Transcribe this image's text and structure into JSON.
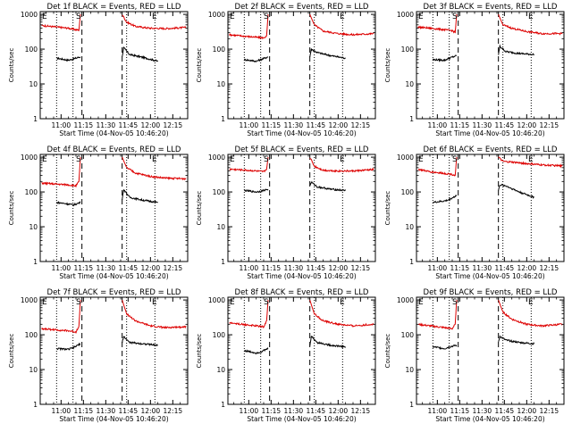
{
  "x_ticks": [
    "11:00",
    "11:15",
    "11:30",
    "11:45",
    "12:00",
    "12:15"
  ],
  "y_ticks": [
    "1",
    "10",
    "100",
    "1000"
  ],
  "ylabel": "Counts/sec",
  "xlabel": "Start Time (04-Nov-05 10:46:20)",
  "flag_labels": {
    "e_left": "E",
    "s": "S",
    "e_right": "E"
  },
  "colors": {
    "events": "#000000",
    "lld": "#dd0000",
    "axes": "#000000"
  },
  "chart_data": [
    {
      "type": "line",
      "title": "Det 1f BLACK = Events, RED = LLD",
      "xlabel": "Start Time (04-Nov-05 10:46:20)",
      "ylabel": "Counts/sec",
      "ylog": true,
      "ylim": [
        1,
        1200
      ],
      "xlim": [
        "10:46",
        "12:25"
      ],
      "vertical_lines": {
        "dotted": [
          "10:57",
          "11:08",
          "11:44",
          "12:03"
        ],
        "dashed": [
          "11:14",
          "11:41"
        ]
      },
      "series": [
        {
          "name": "Events",
          "segments": [
            {
              "x": [
                "10:57",
                "11:05",
                "11:08",
                "11:13"
              ],
              "y": [
                55,
                48,
                52,
                60
              ]
            },
            {
              "x": [
                "11:41",
                "11:42",
                "11:46",
                "11:55",
                "12:05"
              ],
              "y": [
                60,
                110,
                70,
                58,
                45
              ]
            }
          ]
        },
        {
          "name": "LLD",
          "segments": [
            {
              "x": [
                "10:47",
                "10:55",
                "11:05",
                "11:10",
                "11:12",
                "11:13"
              ],
              "y": [
                480,
                440,
                400,
                360,
                350,
                1000
              ]
            },
            {
              "x": [
                "11:41",
                "11:44",
                "11:50",
                "12:00",
                "12:10",
                "12:24"
              ],
              "y": [
                1000,
                600,
                450,
                400,
                390,
                420
              ]
            }
          ]
        }
      ]
    },
    {
      "type": "line",
      "title": "Det 2f BLACK = Events, RED = LLD",
      "xlabel": "Start Time (04-Nov-05 10:46:20)",
      "ylabel": "Counts/sec",
      "ylog": true,
      "ylim": [
        1,
        1200
      ],
      "xlim": [
        "10:46",
        "12:25"
      ],
      "vertical_lines": {
        "dotted": [
          "10:57",
          "11:08",
          "11:44",
          "12:03"
        ],
        "dashed": [
          "11:14",
          "11:41"
        ]
      },
      "series": [
        {
          "name": "Events",
          "segments": [
            {
              "x": [
                "10:57",
                "11:05",
                "11:08",
                "11:13"
              ],
              "y": [
                50,
                45,
                50,
                60
              ]
            },
            {
              "x": [
                "11:41",
                "11:42",
                "11:46",
                "11:55",
                "12:05"
              ],
              "y": [
                60,
                100,
                80,
                65,
                55
              ]
            }
          ]
        },
        {
          "name": "LLD",
          "segments": [
            {
              "x": [
                "10:47",
                "10:55",
                "11:05",
                "11:10",
                "11:12",
                "11:13"
              ],
              "y": [
                260,
                240,
                220,
                210,
                240,
                1000
              ]
            },
            {
              "x": [
                "11:41",
                "11:44",
                "11:50",
                "12:00",
                "12:10",
                "12:24"
              ],
              "y": [
                1000,
                500,
                330,
                280,
                260,
                280
              ]
            }
          ]
        }
      ]
    },
    {
      "type": "line",
      "title": "Det 3f BLACK = Events, RED = LLD",
      "xlabel": "Start Time (04-Nov-05 10:46:20)",
      "ylabel": "Counts/sec",
      "ylog": true,
      "ylim": [
        1,
        1200
      ],
      "xlim": [
        "10:46",
        "12:25"
      ],
      "vertical_lines": {
        "dotted": [
          "10:57",
          "11:08",
          "11:44",
          "12:03"
        ],
        "dashed": [
          "11:14",
          "11:41"
        ]
      },
      "series": [
        {
          "name": "Events",
          "segments": [
            {
              "x": [
                "10:57",
                "11:05",
                "11:08",
                "11:13"
              ],
              "y": [
                50,
                48,
                55,
                65
              ]
            },
            {
              "x": [
                "11:41",
                "11:42",
                "11:46",
                "11:55",
                "12:05"
              ],
              "y": [
                70,
                120,
                85,
                75,
                70
              ]
            }
          ]
        },
        {
          "name": "LLD",
          "segments": [
            {
              "x": [
                "10:47",
                "10:55",
                "11:05",
                "11:10",
                "11:12",
                "11:13"
              ],
              "y": [
                430,
                400,
                360,
                340,
                300,
                1000
              ]
            },
            {
              "x": [
                "11:41",
                "11:44",
                "11:50",
                "12:00",
                "12:10",
                "12:24"
              ],
              "y": [
                1000,
                500,
                400,
                320,
                280,
                280
              ]
            }
          ]
        }
      ]
    },
    {
      "type": "line",
      "title": "Det 4f BLACK = Events, RED = LLD",
      "xlabel": "Start Time (04-Nov-05 10:46:20)",
      "ylabel": "Counts/sec",
      "ylog": true,
      "ylim": [
        1,
        1200
      ],
      "xlim": [
        "10:46",
        "12:25"
      ],
      "vertical_lines": {
        "dotted": [
          "10:57",
          "11:08",
          "11:44",
          "12:03"
        ],
        "dashed": [
          "11:14",
          "11:41"
        ]
      },
      "series": [
        {
          "name": "Events",
          "segments": [
            {
              "x": [
                "10:57",
                "11:05",
                "11:08",
                "11:13"
              ],
              "y": [
                50,
                45,
                42,
                50
              ]
            },
            {
              "x": [
                "11:41",
                "11:42",
                "11:46",
                "11:55",
                "12:05"
              ],
              "y": [
                60,
                120,
                70,
                58,
                50
              ]
            }
          ]
        },
        {
          "name": "LLD",
          "segments": [
            {
              "x": [
                "10:47",
                "10:55",
                "11:05",
                "11:10",
                "11:12",
                "11:13"
              ],
              "y": [
                180,
                170,
                160,
                150,
                200,
                1000
              ]
            },
            {
              "x": [
                "11:41",
                "11:44",
                "11:50",
                "12:00",
                "12:10",
                "12:24"
              ],
              "y": [
                1000,
                500,
                350,
                280,
                250,
                240
              ]
            }
          ]
        }
      ]
    },
    {
      "type": "line",
      "title": "Det 5f BLACK = Events, RED = LLD",
      "xlabel": "Start Time (04-Nov-05 10:46:20)",
      "ylabel": "Counts/sec",
      "ylog": true,
      "ylim": [
        1,
        1200
      ],
      "xlim": [
        "10:46",
        "12:25"
      ],
      "vertical_lines": {
        "dotted": [
          "10:57",
          "11:08",
          "11:44",
          "12:03"
        ],
        "dashed": [
          "11:14",
          "11:41"
        ]
      },
      "series": [
        {
          "name": "Events",
          "segments": [
            {
              "x": [
                "10:57",
                "11:05",
                "11:08",
                "11:13"
              ],
              "y": [
                110,
                100,
                105,
                120
              ]
            },
            {
              "x": [
                "11:41",
                "11:42",
                "11:46",
                "11:55",
                "12:05"
              ],
              "y": [
                150,
                190,
                140,
                120,
                110
              ]
            }
          ]
        },
        {
          "name": "LLD",
          "segments": [
            {
              "x": [
                "10:47",
                "10:55",
                "11:05",
                "11:10",
                "11:12",
                "11:13"
              ],
              "y": [
                450,
                430,
                400,
                380,
                450,
                1000
              ]
            },
            {
              "x": [
                "11:41",
                "11:44",
                "11:50",
                "12:00",
                "12:10",
                "12:24"
              ],
              "y": [
                1000,
                550,
                420,
                400,
                400,
                440
              ]
            }
          ]
        }
      ]
    },
    {
      "type": "line",
      "title": "Det 6f BLACK = Events, RED = LLD",
      "xlabel": "Start Time (04-Nov-05 10:46:20)",
      "ylabel": "Counts/sec",
      "ylog": true,
      "ylim": [
        1,
        1200
      ],
      "xlim": [
        "10:46",
        "12:25"
      ],
      "vertical_lines": {
        "dotted": [
          "10:57",
          "11:08",
          "11:44",
          "12:03"
        ],
        "dashed": [
          "11:14",
          "11:41"
        ]
      },
      "series": [
        {
          "name": "Events",
          "segments": [
            {
              "x": [
                "10:57",
                "11:05",
                "11:08",
                "11:13"
              ],
              "y": [
                50,
                55,
                60,
                80
              ]
            },
            {
              "x": [
                "11:41",
                "11:42",
                "11:46",
                "11:55",
                "12:05"
              ],
              "y": [
                110,
                160,
                150,
                100,
                70
              ]
            }
          ]
        },
        {
          "name": "LLD",
          "segments": [
            {
              "x": [
                "10:47",
                "10:55",
                "11:05",
                "11:10",
                "11:12",
                "11:13"
              ],
              "y": [
                450,
                380,
                340,
                320,
                300,
                1000
              ]
            },
            {
              "x": [
                "11:41",
                "11:44",
                "11:50",
                "12:00",
                "12:10",
                "12:24"
              ],
              "y": [
                1000,
                750,
                720,
                650,
                600,
                560
              ]
            }
          ]
        }
      ]
    },
    {
      "type": "line",
      "title": "Det 7f BLACK = Events, RED = LLD",
      "xlabel": "Start Time (04-Nov-05 10:46:20)",
      "ylabel": "Counts/sec",
      "ylog": true,
      "ylim": [
        1,
        1200
      ],
      "xlim": [
        "10:46",
        "12:25"
      ],
      "vertical_lines": {
        "dotted": [
          "10:57",
          "11:08",
          "11:44",
          "12:03"
        ],
        "dashed": [
          "11:14",
          "11:41"
        ]
      },
      "series": [
        {
          "name": "Events",
          "segments": [
            {
              "x": [
                "10:57",
                "11:05",
                "11:08",
                "11:13"
              ],
              "y": [
                40,
                38,
                42,
                55
              ]
            },
            {
              "x": [
                "11:41",
                "11:42",
                "11:46",
                "11:55",
                "12:05"
              ],
              "y": [
                60,
                90,
                60,
                55,
                50
              ]
            }
          ]
        },
        {
          "name": "LLD",
          "segments": [
            {
              "x": [
                "10:47",
                "10:55",
                "11:05",
                "11:10",
                "11:12",
                "11:13"
              ],
              "y": [
                150,
                140,
                130,
                120,
                180,
                1000
              ]
            },
            {
              "x": [
                "11:41",
                "11:44",
                "11:50",
                "12:00",
                "12:10",
                "12:24"
              ],
              "y": [
                1000,
                400,
                250,
                180,
                160,
                170
              ]
            }
          ]
        }
      ]
    },
    {
      "type": "line",
      "title": "Det 8f BLACK = Events, RED = LLD",
      "xlabel": "Start Time (04-Nov-05 10:46:20)",
      "ylabel": "Counts/sec",
      "ylog": true,
      "ylim": [
        1,
        1200
      ],
      "xlim": [
        "10:46",
        "12:25"
      ],
      "vertical_lines": {
        "dotted": [
          "10:57",
          "11:08",
          "11:44",
          "12:03"
        ],
        "dashed": [
          "11:14",
          "11:41"
        ]
      },
      "series": [
        {
          "name": "Events",
          "segments": [
            {
              "x": [
                "10:57",
                "11:05",
                "11:08",
                "11:13"
              ],
              "y": [
                35,
                30,
                32,
                40
              ]
            },
            {
              "x": [
                "11:41",
                "11:42",
                "11:46",
                "11:55",
                "12:05"
              ],
              "y": [
                50,
                90,
                60,
                50,
                45
              ]
            }
          ]
        },
        {
          "name": "LLD",
          "segments": [
            {
              "x": [
                "10:47",
                "10:55",
                "11:05",
                "11:10",
                "11:12",
                "11:13"
              ],
              "y": [
                220,
                200,
                180,
                170,
                250,
                1000
              ]
            },
            {
              "x": [
                "11:41",
                "11:44",
                "11:50",
                "12:00",
                "12:10",
                "12:24"
              ],
              "y": [
                1000,
                400,
                250,
                200,
                180,
                200
              ]
            }
          ]
        }
      ]
    },
    {
      "type": "line",
      "title": "Det 9f BLACK = Events, RED = LLD",
      "xlabel": "Start Time (04-Nov-05 10:46:20)",
      "ylabel": "Counts/sec",
      "ylog": true,
      "ylim": [
        1,
        1200
      ],
      "xlim": [
        "10:46",
        "12:25"
      ],
      "vertical_lines": {
        "dotted": [
          "10:57",
          "11:08",
          "11:44",
          "12:03"
        ],
        "dashed": [
          "11:14",
          "11:41"
        ]
      },
      "series": [
        {
          "name": "Events",
          "segments": [
            {
              "x": [
                "10:57",
                "11:05",
                "11:08",
                "11:13"
              ],
              "y": [
                45,
                40,
                45,
                50
              ]
            },
            {
              "x": [
                "11:41",
                "11:42",
                "11:46",
                "11:55",
                "12:05"
              ],
              "y": [
                60,
                90,
                70,
                60,
                55
              ]
            }
          ]
        },
        {
          "name": "LLD",
          "segments": [
            {
              "x": [
                "10:47",
                "10:55",
                "11:05",
                "11:10",
                "11:12",
                "11:13"
              ],
              "y": [
                200,
                180,
                160,
                150,
                200,
                1000
              ]
            },
            {
              "x": [
                "11:41",
                "11:44",
                "11:50",
                "12:00",
                "12:10",
                "12:24"
              ],
              "y": [
                1000,
                450,
                280,
                200,
                180,
                200
              ]
            }
          ]
        }
      ]
    }
  ]
}
